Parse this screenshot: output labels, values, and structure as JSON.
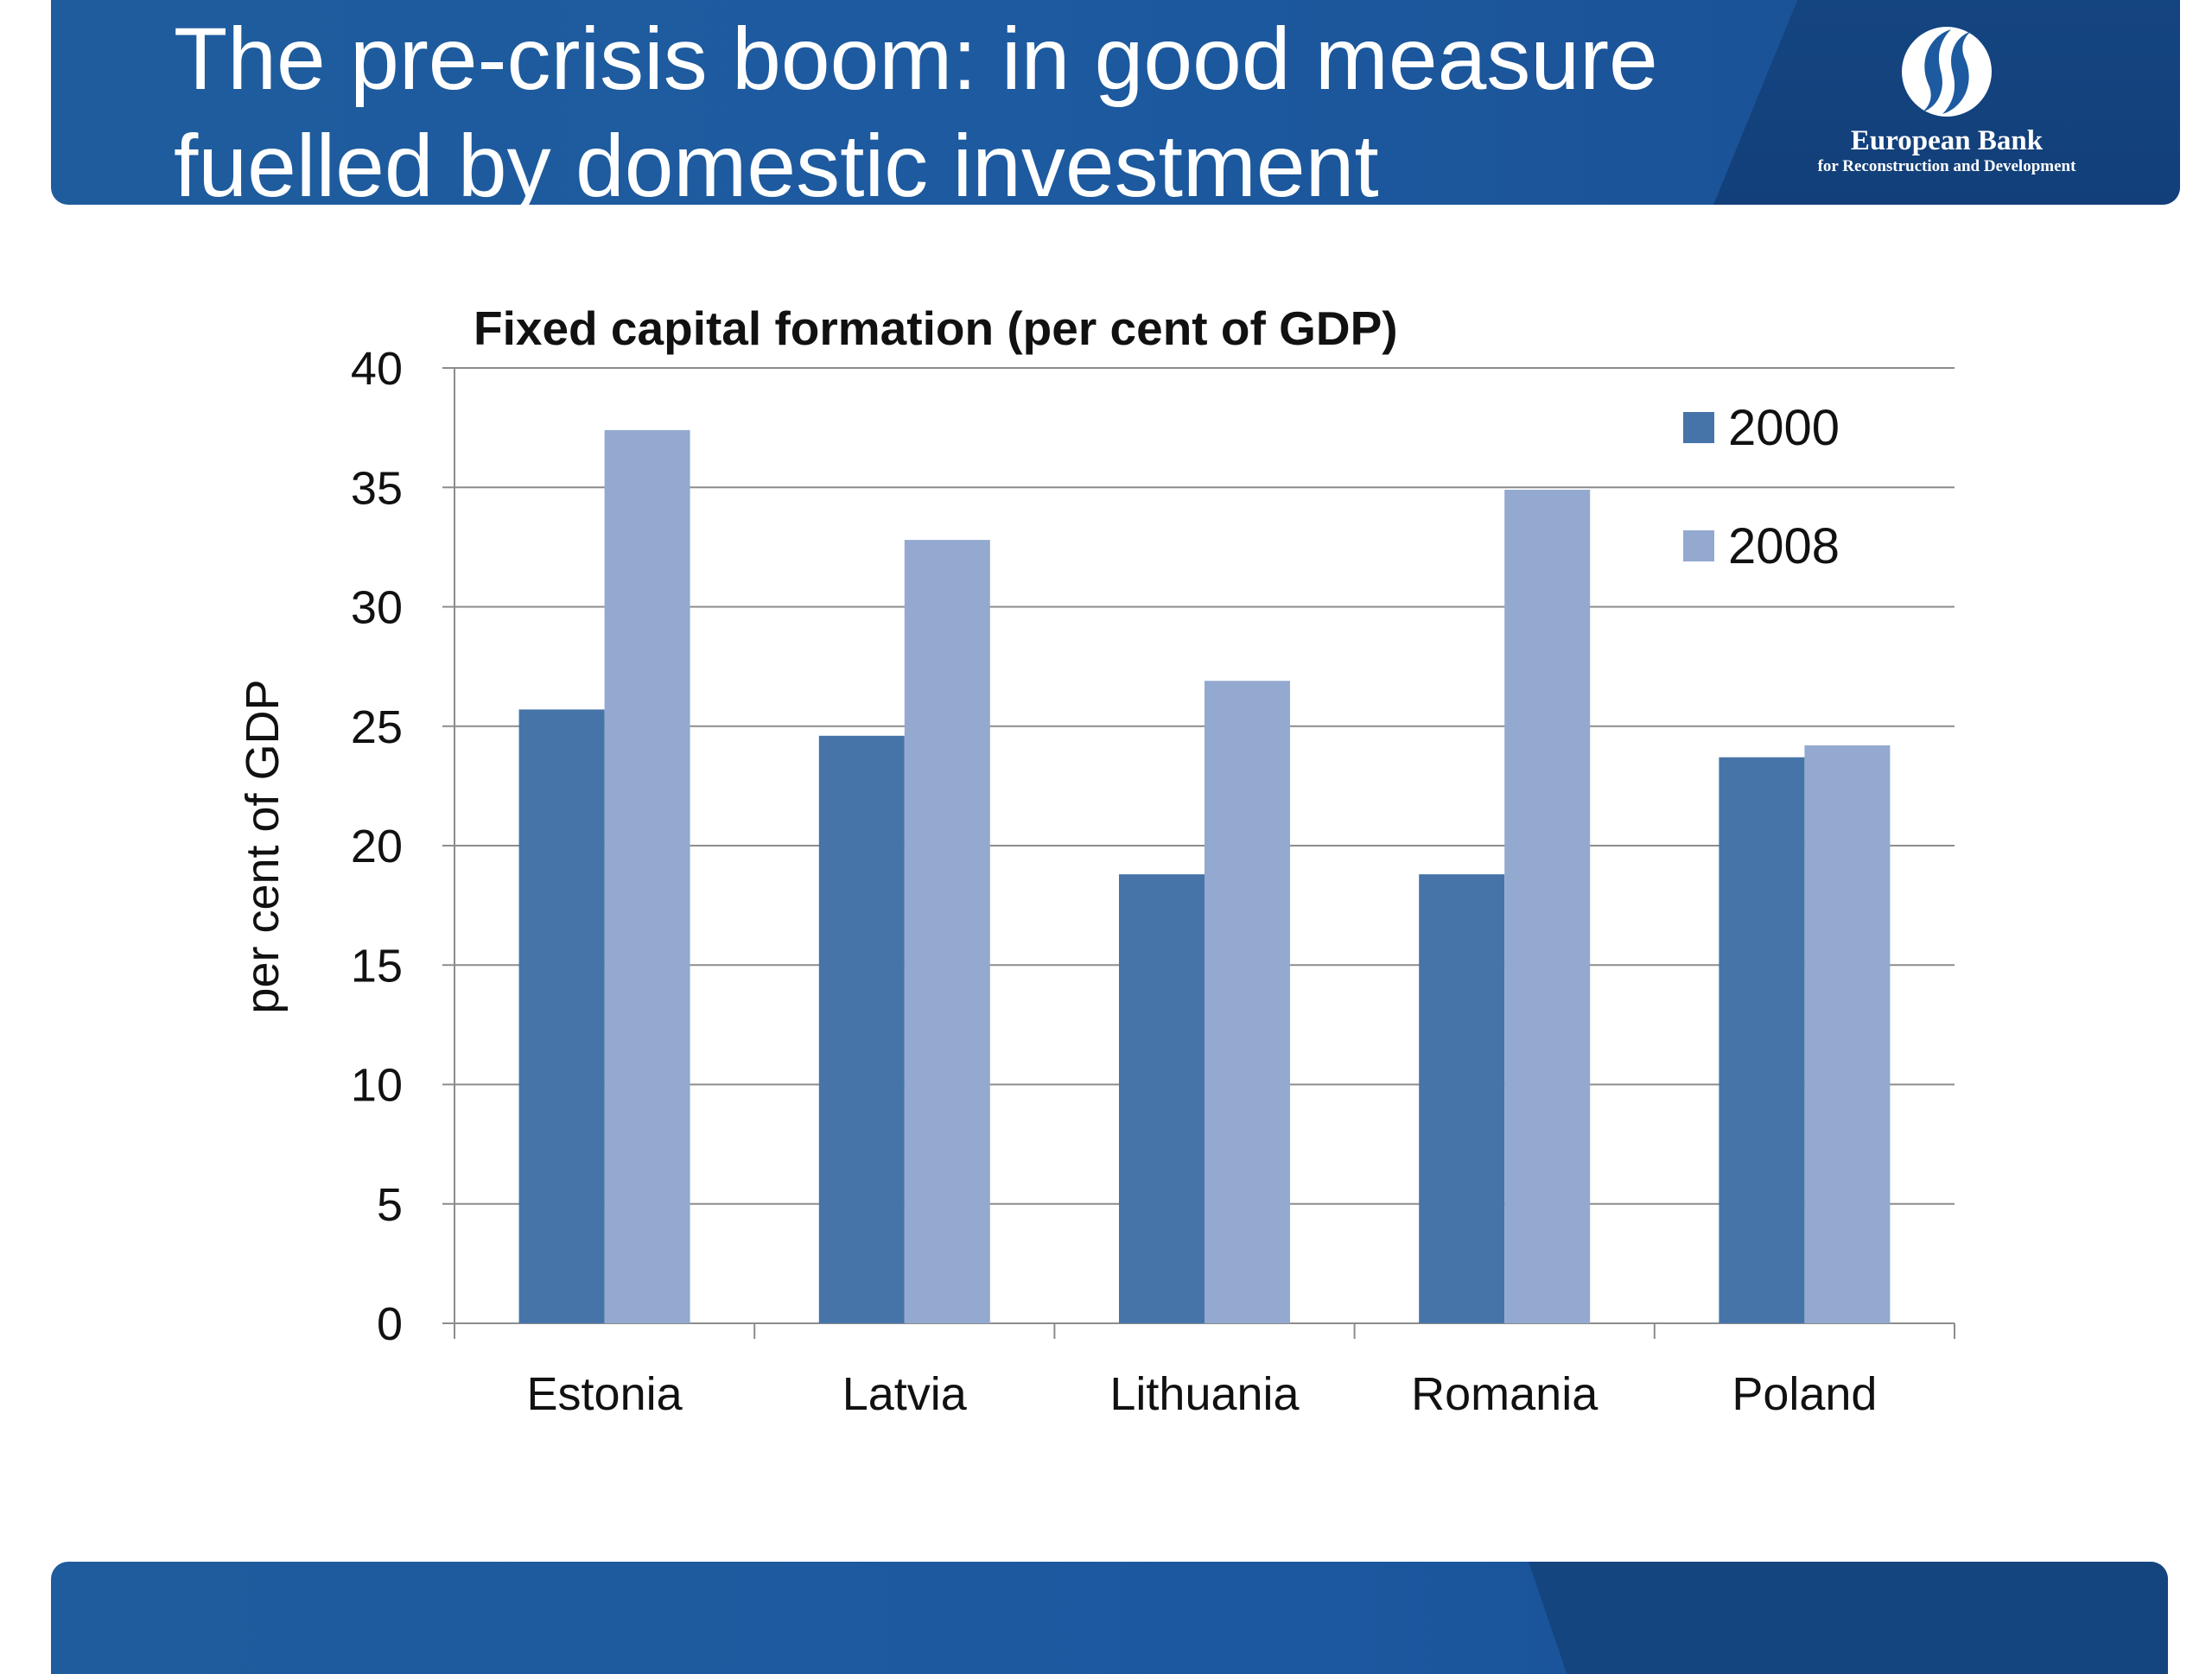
{
  "slide": {
    "title_line1": "The pre-crisis boom: in good measure",
    "title_line2": "fuelled by domestic investment"
  },
  "logo": {
    "name": "European Bank",
    "subtitle": "for Reconstruction and Development"
  },
  "colors": {
    "banner": "#1d5aa0",
    "series_2000": "#4674a8",
    "series_2008": "#94a9d0",
    "grid": "#8c8c8c"
  },
  "chart_data": {
    "type": "bar",
    "title": "Fixed capital formation (per cent of GDP)",
    "xlabel": "",
    "ylabel": "per cent of GDP",
    "ylim": [
      0,
      40
    ],
    "yticks": [
      0,
      5,
      10,
      15,
      20,
      25,
      30,
      35,
      40
    ],
    "grid": true,
    "legend_position": "top-right",
    "categories": [
      "Estonia",
      "Latvia",
      "Lithuania",
      "Romania",
      "Poland"
    ],
    "series": [
      {
        "name": "2000",
        "color": "#4674a8",
        "values": [
          25.7,
          24.6,
          18.8,
          18.8,
          23.7
        ]
      },
      {
        "name": "2008",
        "color": "#94a9d0",
        "values": [
          37.4,
          32.8,
          26.9,
          34.9,
          24.2
        ]
      }
    ]
  }
}
